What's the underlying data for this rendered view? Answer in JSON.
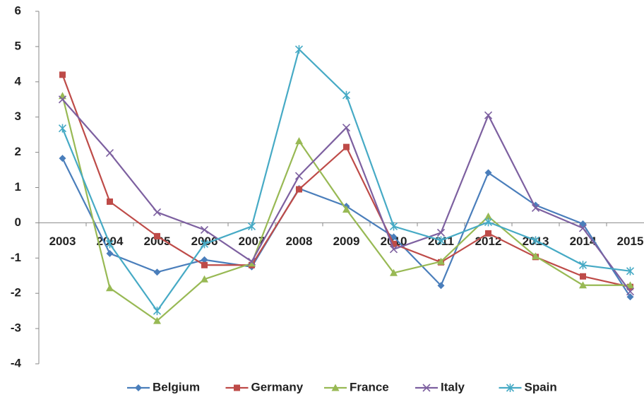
{
  "chart_data": {
    "type": "line",
    "categories": [
      "2003",
      "2004",
      "2005",
      "2006",
      "2007",
      "2008",
      "2009",
      "2010",
      "2011",
      "2012",
      "2013",
      "2014",
      "2015"
    ],
    "series": [
      {
        "name": "Belgium",
        "color": "#4a7ebb",
        "marker": "diamond",
        "values": [
          1.83,
          -0.87,
          -1.4,
          -1.05,
          -1.25,
          0.97,
          0.47,
          -0.4,
          -1.78,
          1.42,
          0.5,
          -0.03,
          -2.1
        ]
      },
      {
        "name": "Germany",
        "color": "#be4b48",
        "marker": "square",
        "values": [
          4.2,
          0.6,
          -0.38,
          -1.2,
          -1.2,
          0.95,
          2.15,
          -0.6,
          -1.12,
          -0.3,
          -0.97,
          -1.52,
          -1.82
        ]
      },
      {
        "name": "France",
        "color": "#98b954",
        "marker": "triangle",
        "values": [
          3.6,
          -1.85,
          -2.78,
          -1.6,
          -1.15,
          2.32,
          0.38,
          -1.42,
          -1.1,
          0.18,
          -0.95,
          -1.77,
          -1.77
        ]
      },
      {
        "name": "Italy",
        "color": "#7d60a0",
        "marker": "x",
        "values": [
          3.5,
          1.98,
          0.3,
          -0.2,
          -1.1,
          1.33,
          2.7,
          -0.75,
          -0.28,
          3.05,
          0.42,
          -0.15,
          -1.95
        ]
      },
      {
        "name": "Spain",
        "color": "#46aac5",
        "marker": "star",
        "values": [
          2.68,
          -0.6,
          -2.5,
          -0.6,
          -0.1,
          4.92,
          3.62,
          -0.1,
          -0.5,
          0.02,
          -0.5,
          -1.2,
          -1.37
        ]
      }
    ],
    "ylim": [
      -4,
      6
    ],
    "yticks": [
      -4,
      -3,
      -2,
      -1,
      0,
      1,
      2,
      3,
      4,
      5,
      6
    ],
    "grid": false,
    "legend": "bottom"
  }
}
